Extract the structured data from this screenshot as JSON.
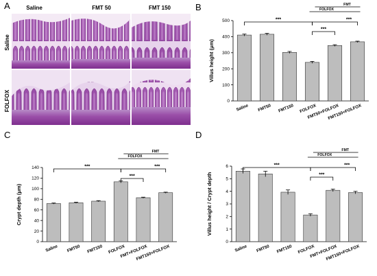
{
  "panels": {
    "A": {
      "letter": "A",
      "columns": [
        "Saline",
        "FMT 50",
        "FMT 150"
      ],
      "rows": [
        "Saline",
        "FOLFOX"
      ]
    }
  },
  "chart_data": [
    {
      "panel": "B",
      "type": "bar",
      "categories": [
        "Saline",
        "FMT50",
        "FMT150",
        "FOLFOX",
        "FMT50+FOLFOX",
        "FMT150+FOLFOX"
      ],
      "values": [
        410,
        415,
        302,
        240,
        345,
        368
      ],
      "errors": [
        6,
        6,
        6,
        6,
        5,
        4
      ],
      "ylabel": "Villus height (μm)",
      "ylim": [
        0,
        500
      ],
      "yticks": [
        0,
        100,
        200,
        300,
        400,
        500
      ],
      "sig_label": "***",
      "group_labels": [
        "FMT",
        "FOLFOX"
      ]
    },
    {
      "panel": "C",
      "type": "bar",
      "categories": [
        "Saline",
        "FMT50",
        "FMT150",
        "FOLFOX",
        "FMT+FOLFOX",
        "FMT150+FOLFOX"
      ],
      "values": [
        72,
        73.5,
        76.5,
        113,
        83,
        92.5
      ],
      "errors": [
        1,
        1,
        1,
        2,
        1,
        1
      ],
      "ylabel": "Crypt depth (μm)",
      "ylim": [
        0,
        140
      ],
      "yticks": [
        0,
        20,
        40,
        60,
        80,
        100,
        120,
        140
      ],
      "sig_label": "***",
      "group_labels": [
        "FMT",
        "FOLFOX"
      ]
    },
    {
      "panel": "D",
      "type": "bar",
      "categories": [
        "Saline",
        "FMT50",
        "FMT150",
        "FOLFOX",
        "FMT+FOLFOX",
        "FMT150+FOLFOX"
      ],
      "values": [
        5.6,
        5.38,
        3.93,
        2.12,
        4.08,
        3.9
      ],
      "errors": [
        0.18,
        0.22,
        0.18,
        0.1,
        0.1,
        0.1
      ],
      "ylabel": "Villus height / Crypt depth",
      "ylim": [
        0,
        6
      ],
      "yticks": [
        0,
        1,
        2,
        3,
        4,
        5,
        6
      ],
      "sig_label": "***",
      "group_labels": [
        "FMT",
        "FOLFOX"
      ]
    }
  ]
}
